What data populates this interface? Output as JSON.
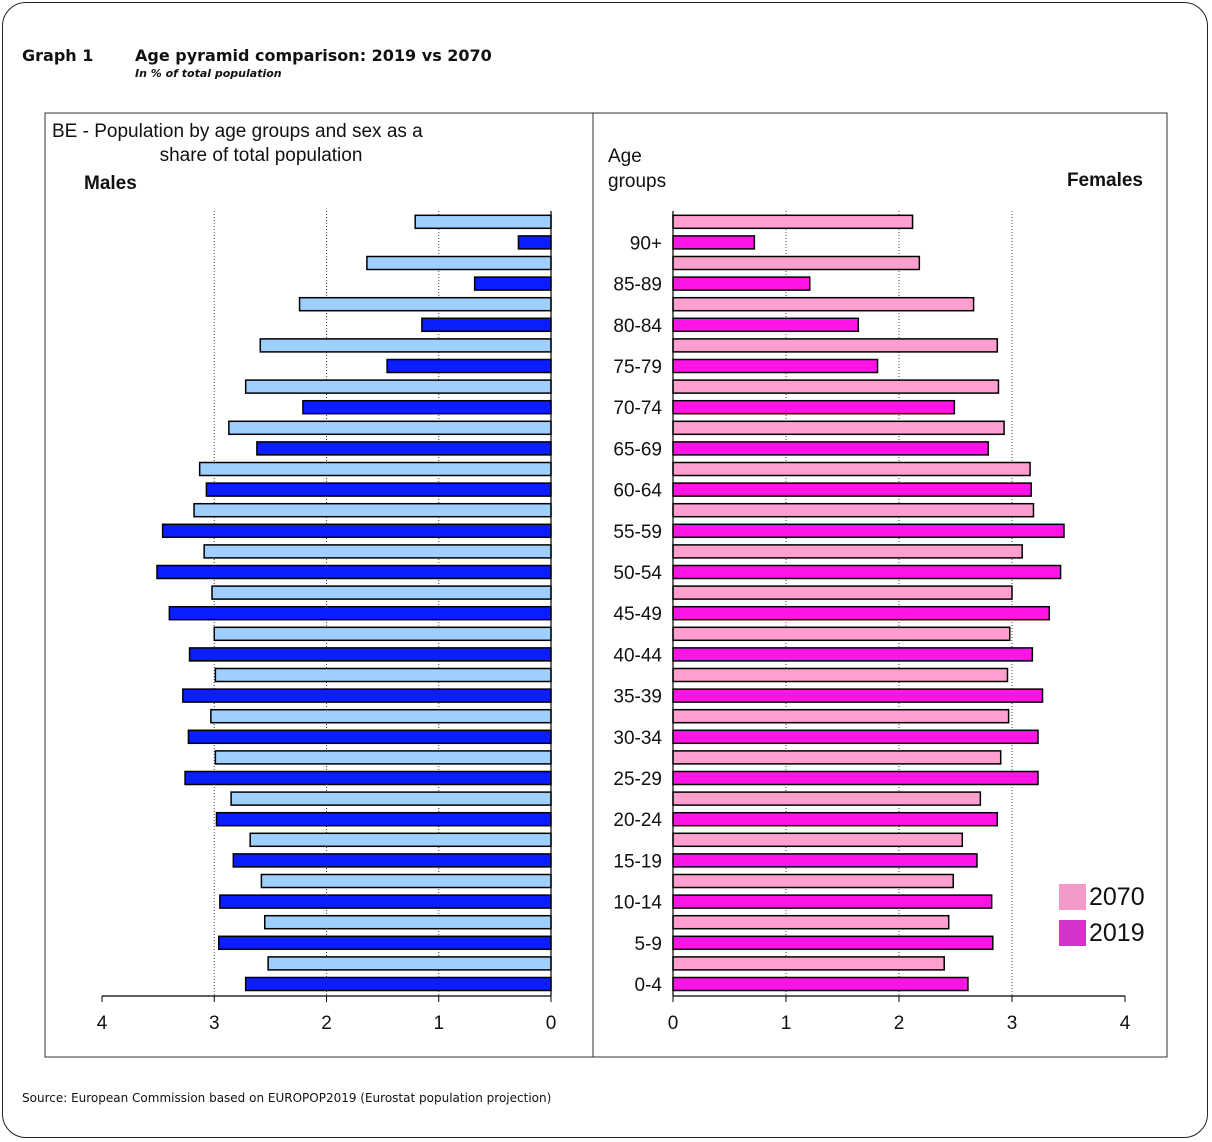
{
  "header": {
    "graph_number": "Graph 1",
    "title": "Age pyramid comparison: 2019 vs 2070",
    "subtitle": "In % of total population"
  },
  "source": "Source: European Commission based on EUROPOP2019 (Eurostat population projection)",
  "chart_data": {
    "type": "bar",
    "orientation": "horizontal-pyramid",
    "title": "BE - Population by age groups and sex as a share of total population",
    "age_axis_label": "Age groups",
    "left_panel_label": "Males",
    "right_panel_label": "Females",
    "categories": [
      "0-4",
      "5-9",
      "10-14",
      "15-19",
      "20-24",
      "25-29",
      "30-34",
      "35-39",
      "40-44",
      "45-49",
      "50-54",
      "55-59",
      "60-64",
      "65-69",
      "70-74",
      "75-79",
      "80-84",
      "85-89",
      "90+"
    ],
    "x_ticks_males": [
      "4",
      "3",
      "2",
      "1",
      "0"
    ],
    "x_ticks_females": [
      "0",
      "1",
      "2",
      "3",
      "4"
    ],
    "xlim": [
      0,
      4
    ],
    "grid": "vertical dotted lines at 1, 2, 3",
    "legend": {
      "placement": "bottom-right of female panel",
      "entries": [
        {
          "label": "2070",
          "color": "#f49ac9"
        },
        {
          "label": "2019",
          "color": "#d432c8"
        }
      ]
    },
    "series": [
      {
        "name": "2019",
        "males": [
          2.72,
          2.96,
          2.95,
          2.83,
          2.98,
          3.26,
          3.23,
          3.28,
          3.22,
          3.4,
          3.51,
          3.46,
          3.07,
          2.62,
          2.21,
          1.46,
          1.15,
          0.68,
          0.29
        ],
        "females": [
          2.61,
          2.83,
          2.82,
          2.69,
          2.87,
          3.23,
          3.23,
          3.27,
          3.18,
          3.33,
          3.43,
          3.46,
          3.17,
          2.79,
          2.49,
          1.81,
          1.64,
          1.21,
          0.72
        ],
        "male_color": "#0a1eff",
        "female_color": "#ff14e6"
      },
      {
        "name": "2070",
        "males": [
          2.52,
          2.55,
          2.58,
          2.68,
          2.85,
          2.99,
          3.03,
          2.99,
          3.0,
          3.02,
          3.09,
          3.18,
          3.13,
          2.87,
          2.72,
          2.59,
          2.24,
          1.64,
          1.21
        ],
        "females": [
          2.4,
          2.44,
          2.48,
          2.56,
          2.72,
          2.9,
          2.97,
          2.96,
          2.98,
          3.0,
          3.09,
          3.19,
          3.16,
          2.93,
          2.88,
          2.87,
          2.66,
          2.18,
          2.12
        ],
        "male_color": "#9fcfff",
        "female_color": "#ff9fcf"
      }
    ]
  }
}
